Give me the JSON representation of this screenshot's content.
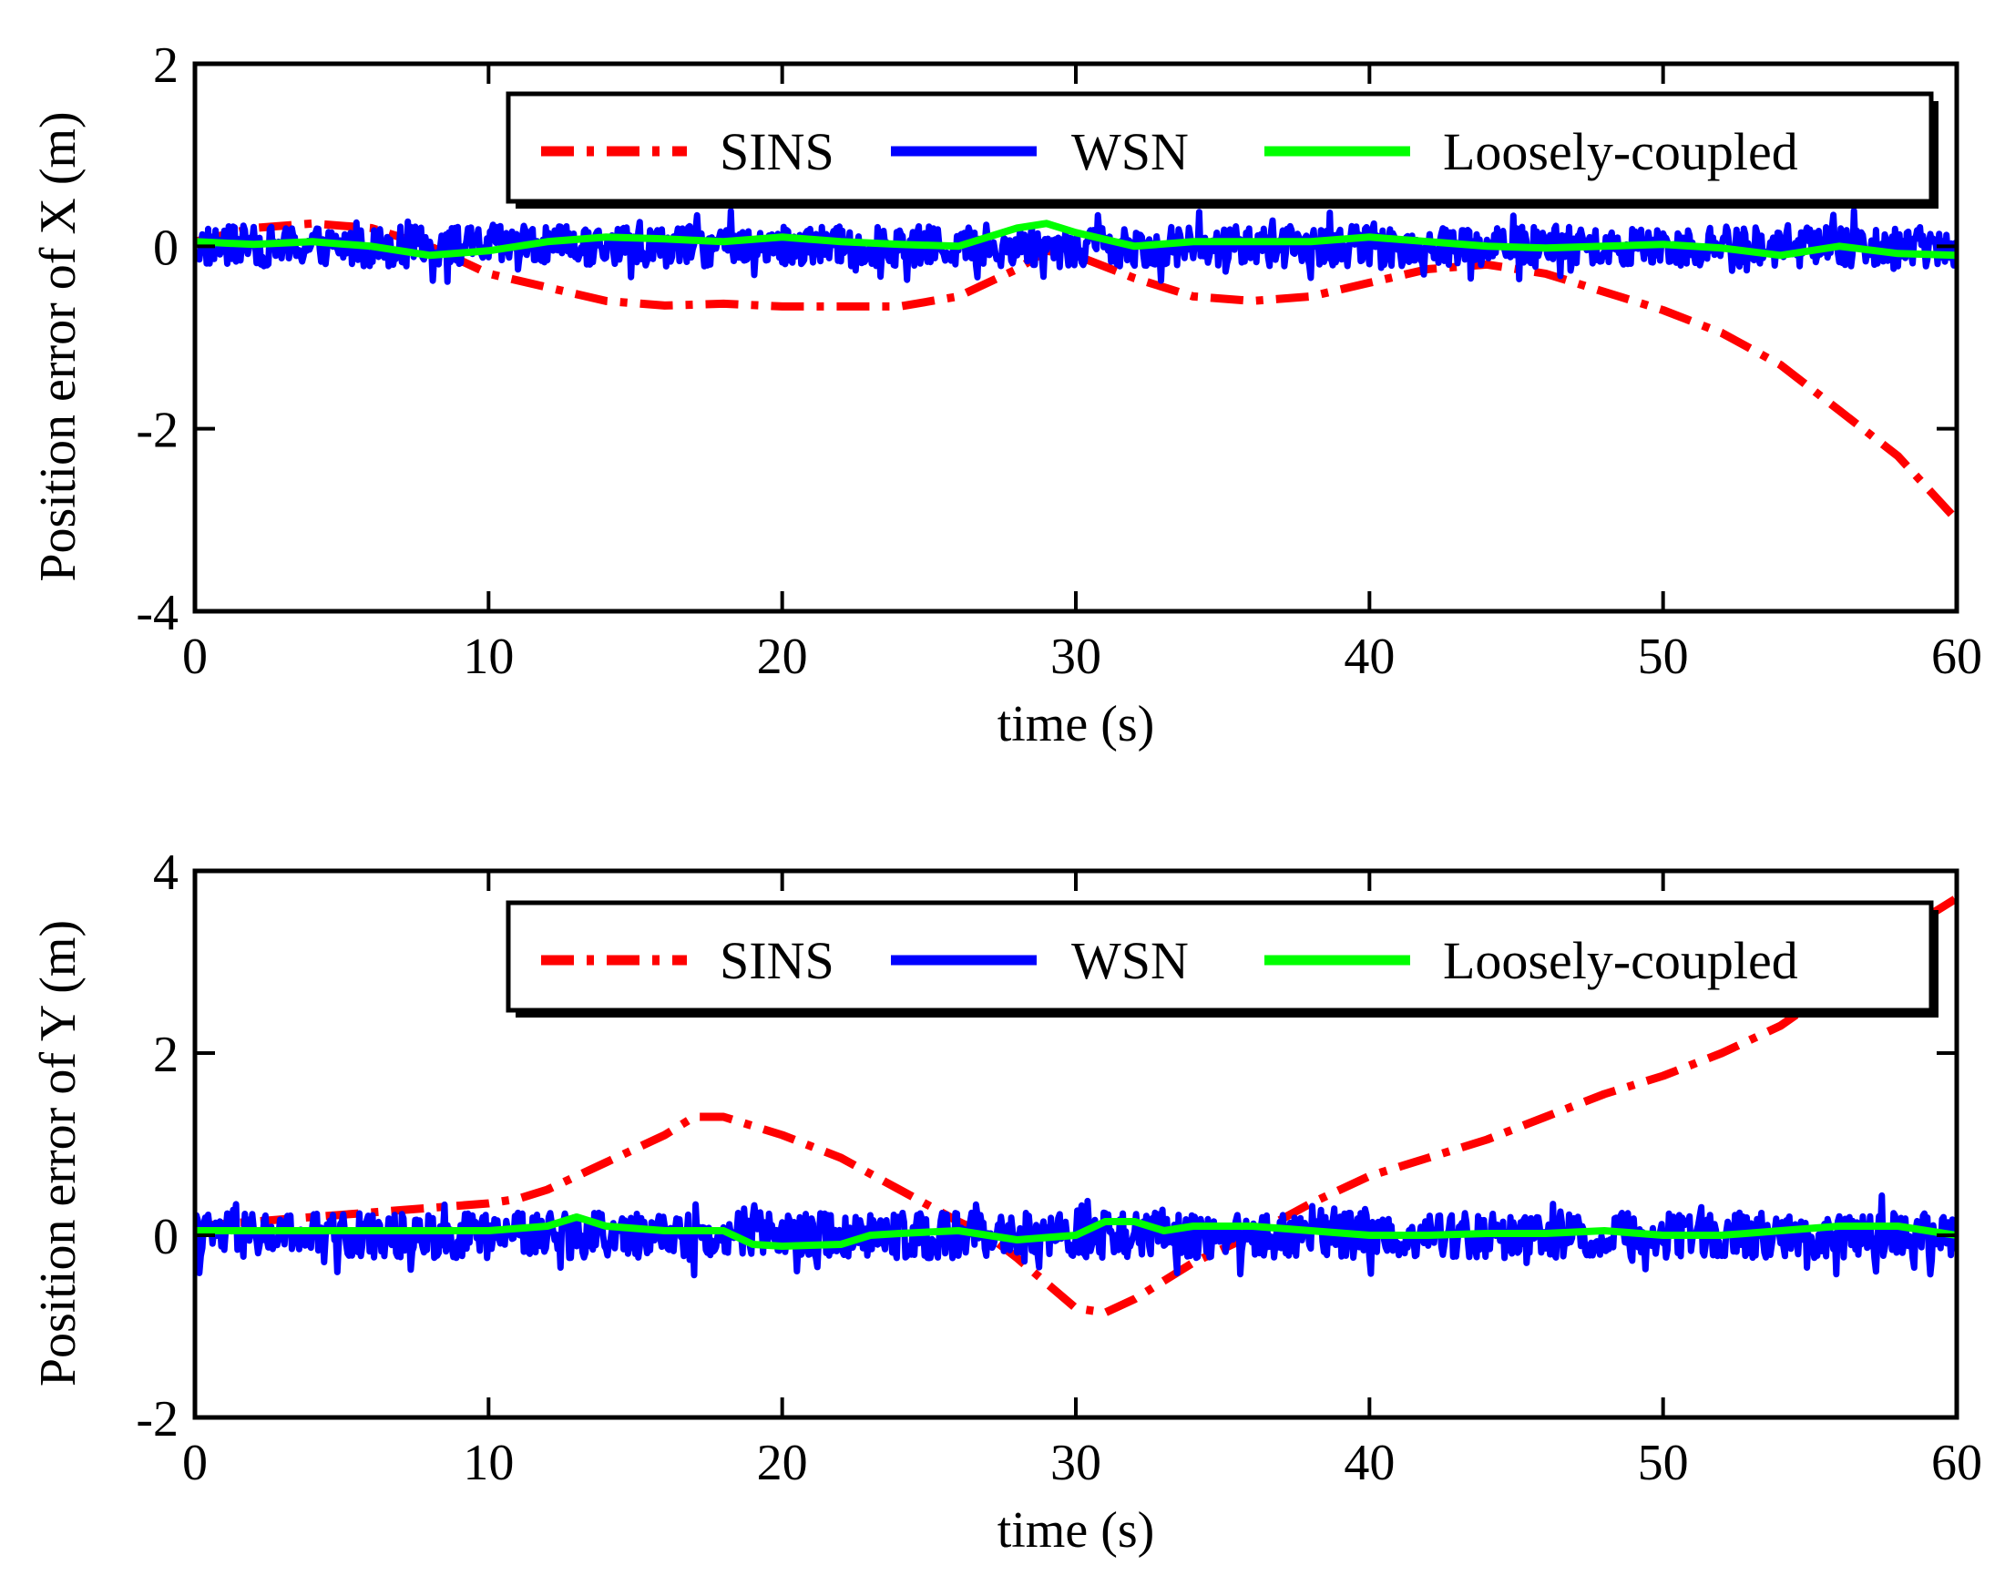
{
  "colors": {
    "sins": "#ff0000",
    "wsn": "#0000ff",
    "loose": "#00ff00",
    "axis": "#000000",
    "background": "#ffffff"
  },
  "chart_data": [
    {
      "type": "line",
      "title": "",
      "xlabel": "time (s)",
      "ylabel": "Position error of X (m)",
      "xlim": [
        0,
        60
      ],
      "ylim": [
        -4,
        2
      ],
      "xticks": [
        0,
        10,
        20,
        30,
        40,
        50,
        60
      ],
      "yticks": [
        -4,
        -2,
        0,
        2
      ],
      "xtick_labels": [
        "0",
        "10",
        "20",
        "30",
        "40",
        "50",
        "60"
      ],
      "ytick_labels": [
        "-4",
        "-2",
        "0",
        "2"
      ],
      "legend_position": "top-right",
      "legend_order": [
        "SINS",
        "WSN",
        "Loosely-coupled"
      ],
      "series": [
        {
          "name": "SINS",
          "key": "sins",
          "style": "dashdot",
          "x": [
            0,
            2,
            4,
            6,
            8,
            10,
            12,
            14,
            16,
            18,
            20,
            22,
            24,
            26,
            28,
            29,
            30,
            32,
            34,
            36,
            38,
            40,
            42,
            44,
            46,
            48,
            50,
            52,
            54,
            56,
            58,
            60
          ],
          "values": [
            0.05,
            0.2,
            0.25,
            0.2,
            0.0,
            -0.3,
            -0.45,
            -0.6,
            -0.65,
            -0.63,
            -0.66,
            -0.66,
            -0.66,
            -0.55,
            -0.25,
            -0.05,
            -0.1,
            -0.35,
            -0.55,
            -0.6,
            -0.55,
            -0.4,
            -0.25,
            -0.2,
            -0.3,
            -0.5,
            -0.7,
            -0.95,
            -1.3,
            -1.8,
            -2.3,
            -3.0
          ]
        },
        {
          "name": "WSN",
          "key": "wsn",
          "style": "noisy",
          "x": [
            0,
            60
          ],
          "values": [
            0.0,
            0.0
          ],
          "noise_amplitude": 0.22
        },
        {
          "name": "Loosely-coupled",
          "key": "loose",
          "style": "solid",
          "x": [
            0,
            2,
            4,
            6,
            8,
            10,
            12,
            14,
            16,
            18,
            20,
            22,
            24,
            26,
            28,
            29,
            30,
            32,
            34,
            36,
            38,
            40,
            42,
            44,
            46,
            48,
            50,
            52,
            54,
            56,
            58,
            60
          ],
          "values": [
            0.05,
            0.02,
            0.05,
            0.0,
            -0.1,
            -0.05,
            0.05,
            0.1,
            0.08,
            0.05,
            0.1,
            0.05,
            0.02,
            0.0,
            0.2,
            0.25,
            0.15,
            0.0,
            0.05,
            0.05,
            0.05,
            0.1,
            0.05,
            0.0,
            -0.02,
            0.0,
            0.02,
            -0.02,
            -0.1,
            0.0,
            -0.08,
            -0.1
          ]
        }
      ]
    },
    {
      "type": "line",
      "title": "",
      "xlabel": "time (s)",
      "ylabel": "Position error of Y (m)",
      "xlim": [
        0,
        60
      ],
      "ylim": [
        -2,
        4
      ],
      "xticks": [
        0,
        10,
        20,
        30,
        40,
        50,
        60
      ],
      "yticks": [
        -2,
        0,
        2,
        4
      ],
      "xtick_labels": [
        "0",
        "10",
        "20",
        "30",
        "40",
        "50",
        "60"
      ],
      "ytick_labels": [
        "-2",
        "0",
        "2",
        "4"
      ],
      "legend_position": "top-right",
      "legend_order": [
        "SINS",
        "WSN",
        "Loosely-coupled"
      ],
      "series": [
        {
          "name": "SINS",
          "key": "sins",
          "style": "dashdot",
          "x": [
            0,
            2,
            4,
            6,
            8,
            10,
            11,
            12,
            14,
            16,
            17,
            18,
            20,
            22,
            24,
            26,
            27,
            28,
            30,
            31,
            32,
            34,
            36,
            38,
            40,
            42,
            44,
            46,
            48,
            50,
            52,
            54,
            56,
            58,
            60
          ],
          "values": [
            0.1,
            0.15,
            0.2,
            0.25,
            0.3,
            0.35,
            0.4,
            0.5,
            0.8,
            1.1,
            1.3,
            1.3,
            1.1,
            0.85,
            0.5,
            0.15,
            0.0,
            -0.25,
            -0.8,
            -0.85,
            -0.7,
            -0.3,
            0.0,
            0.35,
            0.65,
            0.85,
            1.05,
            1.3,
            1.55,
            1.75,
            2.0,
            2.3,
            2.75,
            3.3,
            3.7
          ]
        },
        {
          "name": "WSN",
          "key": "wsn",
          "style": "noisy",
          "x": [
            0,
            60
          ],
          "values": [
            0.0,
            0.0
          ],
          "noise_amplitude": 0.25
        },
        {
          "name": "Loosely-coupled",
          "key": "loose",
          "style": "solid",
          "x": [
            0,
            2,
            4,
            6,
            8,
            10,
            12,
            13,
            14,
            16,
            18,
            19,
            20,
            22,
            23,
            24,
            26,
            28,
            30,
            31,
            32,
            33,
            34,
            36,
            38,
            40,
            42,
            44,
            46,
            48,
            50,
            52,
            54,
            56,
            58,
            60
          ],
          "values": [
            0.05,
            0.05,
            0.05,
            0.05,
            0.05,
            0.05,
            0.1,
            0.2,
            0.1,
            0.05,
            0.05,
            -0.1,
            -0.12,
            -0.1,
            0.0,
            0.02,
            0.05,
            -0.05,
            0.0,
            0.15,
            0.15,
            0.05,
            0.1,
            0.1,
            0.05,
            0.0,
            0.0,
            0.02,
            0.02,
            0.05,
            0.0,
            0.0,
            0.05,
            0.1,
            0.1,
            0.0
          ]
        }
      ]
    }
  ]
}
